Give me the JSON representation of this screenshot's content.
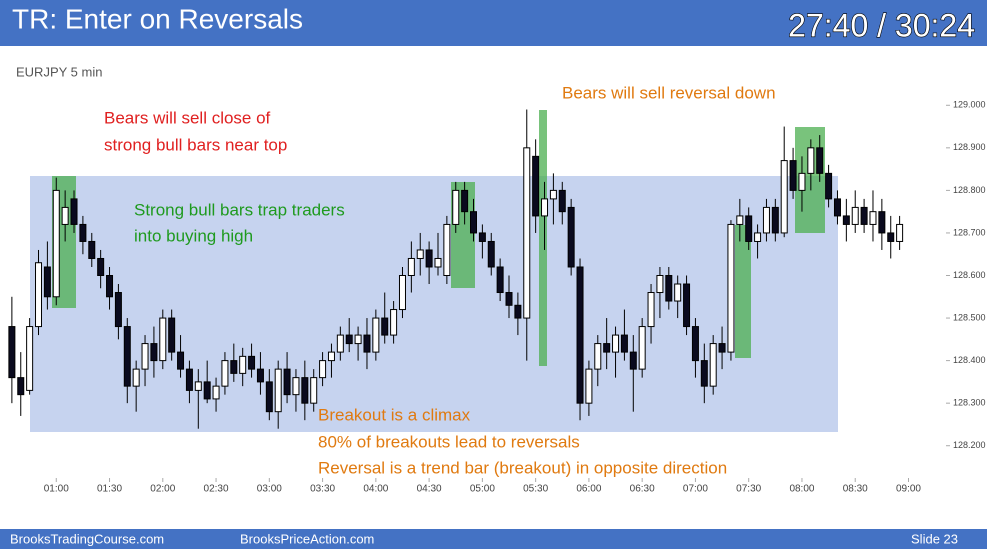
{
  "chart_data": {
    "type": "candlestick",
    "title": "TR: Enter on Reversals",
    "timer": "27:40 / 30:24",
    "symbol": "EURJPY 5 min",
    "annotations": [
      "Bears will sell close of",
      "strong bull bars near top",
      "Strong bull bars trap traders",
      "into buying high",
      "Bears will sell reversal down",
      "Breakout is a climax",
      "80% of breakouts lead to reversals",
      "Reversal is a trend bar (breakout) in opposite direction"
    ],
    "footer": [
      "BrooksTradingCourse.com",
      "BrooksPriceAction.com",
      "Slide  23"
    ],
    "xlim": [
      30,
      560
    ],
    "xticks": [
      {
        "value": 60,
        "label": "01:00"
      },
      {
        "value": 90,
        "label": "01:30"
      },
      {
        "value": 120,
        "label": "02:00"
      },
      {
        "value": 150,
        "label": "02:30"
      },
      {
        "value": 180,
        "label": "03:00"
      },
      {
        "value": 210,
        "label": "03:30"
      },
      {
        "value": 240,
        "label": "04:00"
      },
      {
        "value": 270,
        "label": "04:30"
      },
      {
        "value": 300,
        "label": "05:00"
      },
      {
        "value": 330,
        "label": "05:30"
      },
      {
        "value": 360,
        "label": "06:00"
      },
      {
        "value": 390,
        "label": "06:30"
      },
      {
        "value": 420,
        "label": "07:00"
      },
      {
        "value": 450,
        "label": "07:30"
      },
      {
        "value": 480,
        "label": "08:00"
      },
      {
        "value": 510,
        "label": "08:30"
      },
      {
        "value": 540,
        "label": "09:00"
      }
    ],
    "ylim": [
      128.15,
      129.05
    ],
    "yticks": [
      {
        "value": 128.2,
        "label": "128.200"
      },
      {
        "value": 128.3,
        "label": "128.300"
      },
      {
        "value": 128.4,
        "label": "128.400"
      },
      {
        "value": 128.5,
        "label": "128.500"
      },
      {
        "value": 128.6,
        "label": "128.600"
      },
      {
        "value": 128.7,
        "label": "128.700"
      },
      {
        "value": 128.8,
        "label": "128.800"
      },
      {
        "value": 128.9,
        "label": "128.900"
      },
      {
        "value": 129,
        "label": "129.000"
      }
    ],
    "x": [
      35,
      40,
      45,
      50,
      55,
      60,
      65,
      70,
      75,
      80,
      85,
      90,
      95,
      100,
      105,
      110,
      115,
      120,
      125,
      130,
      135,
      140,
      145,
      150,
      155,
      160,
      165,
      170,
      175,
      180,
      185,
      190,
      195,
      200,
      205,
      210,
      215,
      220,
      225,
      230,
      235,
      240,
      245,
      250,
      255,
      260,
      265,
      270,
      275,
      280,
      285,
      290,
      295,
      300,
      305,
      310,
      315,
      320,
      325,
      330,
      335,
      340,
      345,
      350,
      355,
      360,
      365,
      370,
      375,
      380,
      385,
      390,
      395,
      400,
      405,
      410,
      415,
      420,
      425,
      430,
      435,
      440,
      445,
      450,
      455,
      460,
      465,
      470,
      475,
      480,
      485,
      490,
      495,
      500,
      505,
      510,
      515,
      520,
      525,
      530,
      535
    ],
    "ohlc": [
      [
        128.48,
        128.55,
        128.3,
        128.36
      ],
      [
        128.36,
        128.42,
        128.27,
        128.32
      ],
      [
        128.33,
        128.5,
        128.32,
        128.48
      ],
      [
        128.48,
        128.66,
        128.46,
        128.63
      ],
      [
        128.62,
        128.68,
        128.52,
        128.55
      ],
      [
        128.55,
        128.83,
        128.53,
        128.8
      ],
      [
        128.72,
        128.8,
        128.68,
        128.76
      ],
      [
        128.78,
        128.8,
        128.7,
        128.72
      ],
      [
        128.72,
        128.74,
        128.65,
        128.68
      ],
      [
        128.68,
        128.7,
        128.62,
        128.64
      ],
      [
        128.64,
        128.66,
        128.57,
        128.6
      ],
      [
        128.6,
        128.62,
        128.52,
        128.55
      ],
      [
        128.56,
        128.58,
        128.45,
        128.48
      ],
      [
        128.48,
        128.5,
        128.3,
        128.34
      ],
      [
        128.34,
        128.4,
        128.28,
        128.38
      ],
      [
        128.38,
        128.46,
        128.34,
        128.44
      ],
      [
        128.44,
        128.48,
        128.36,
        128.4
      ],
      [
        128.4,
        128.52,
        128.38,
        128.5
      ],
      [
        128.5,
        128.52,
        128.4,
        128.42
      ],
      [
        128.42,
        128.46,
        128.36,
        128.38
      ],
      [
        128.38,
        128.4,
        128.3,
        128.33
      ],
      [
        128.33,
        128.38,
        128.24,
        128.35
      ],
      [
        128.35,
        128.4,
        128.3,
        128.31
      ],
      [
        128.31,
        128.36,
        128.28,
        128.34
      ],
      [
        128.34,
        128.42,
        128.32,
        128.4
      ],
      [
        128.4,
        128.44,
        128.35,
        128.37
      ],
      [
        128.37,
        128.43,
        128.34,
        128.41
      ],
      [
        128.41,
        128.44,
        128.36,
        128.38
      ],
      [
        128.38,
        128.42,
        128.32,
        128.35
      ],
      [
        128.35,
        128.38,
        128.26,
        128.28
      ],
      [
        128.28,
        128.4,
        128.24,
        128.38
      ],
      [
        128.38,
        128.42,
        128.3,
        128.32
      ],
      [
        128.32,
        128.38,
        128.28,
        128.36
      ],
      [
        128.36,
        128.4,
        128.26,
        128.3
      ],
      [
        128.3,
        128.38,
        128.28,
        128.36
      ],
      [
        128.36,
        128.42,
        128.34,
        128.4
      ],
      [
        128.4,
        128.44,
        128.36,
        128.42
      ],
      [
        128.42,
        128.48,
        128.4,
        128.46
      ],
      [
        128.46,
        128.5,
        128.42,
        128.44
      ],
      [
        128.44,
        128.48,
        128.4,
        128.46
      ],
      [
        128.46,
        128.5,
        128.38,
        128.42
      ],
      [
        128.42,
        128.52,
        128.4,
        128.5
      ],
      [
        128.5,
        128.56,
        128.44,
        128.46
      ],
      [
        128.46,
        128.54,
        128.44,
        128.52
      ],
      [
        128.52,
        128.62,
        128.5,
        128.6
      ],
      [
        128.6,
        128.68,
        128.56,
        128.64
      ],
      [
        128.64,
        128.7,
        128.6,
        128.66
      ],
      [
        128.66,
        128.68,
        128.58,
        128.62
      ],
      [
        128.62,
        128.7,
        128.6,
        128.64
      ],
      [
        128.6,
        128.74,
        128.58,
        128.72
      ],
      [
        128.72,
        128.82,
        128.7,
        128.8
      ],
      [
        128.8,
        128.82,
        128.72,
        128.75
      ],
      [
        128.75,
        128.78,
        128.68,
        128.7
      ],
      [
        128.7,
        128.72,
        128.64,
        128.68
      ],
      [
        128.68,
        128.7,
        128.6,
        128.62
      ],
      [
        128.62,
        128.64,
        128.54,
        128.56
      ],
      [
        128.56,
        128.6,
        128.5,
        128.53
      ],
      [
        128.53,
        128.56,
        128.46,
        128.5
      ],
      [
        128.5,
        128.99,
        128.4,
        128.9
      ],
      [
        128.88,
        128.92,
        128.7,
        128.74
      ],
      [
        128.74,
        128.82,
        128.66,
        128.78
      ],
      [
        128.78,
        128.84,
        128.72,
        128.8
      ],
      [
        128.8,
        128.82,
        128.72,
        128.75
      ],
      [
        128.76,
        128.78,
        128.6,
        128.62
      ],
      [
        128.62,
        128.64,
        128.26,
        128.3
      ],
      [
        128.3,
        128.4,
        128.27,
        128.38
      ],
      [
        128.38,
        128.46,
        128.34,
        128.44
      ],
      [
        128.44,
        128.5,
        128.38,
        128.42
      ],
      [
        128.42,
        128.48,
        128.36,
        128.46
      ],
      [
        128.46,
        128.52,
        128.4,
        128.42
      ],
      [
        128.42,
        128.46,
        128.28,
        128.38
      ],
      [
        128.38,
        128.5,
        128.36,
        128.48
      ],
      [
        128.48,
        128.58,
        128.44,
        128.56
      ],
      [
        128.56,
        128.62,
        128.5,
        128.6
      ],
      [
        128.6,
        128.62,
        128.52,
        128.54
      ],
      [
        128.54,
        128.6,
        128.5,
        128.58
      ],
      [
        128.58,
        128.6,
        128.46,
        128.48
      ],
      [
        128.48,
        128.5,
        128.36,
        128.4
      ],
      [
        128.4,
        128.44,
        128.3,
        128.34
      ],
      [
        128.34,
        128.46,
        128.32,
        128.44
      ],
      [
        128.44,
        128.48,
        128.38,
        128.42
      ],
      [
        128.42,
        128.73,
        128.4,
        128.72
      ],
      [
        128.72,
        128.78,
        128.68,
        128.74
      ],
      [
        128.74,
        128.76,
        128.66,
        128.68
      ],
      [
        128.68,
        128.72,
        128.64,
        128.7
      ],
      [
        128.7,
        128.78,
        128.68,
        128.76
      ],
      [
        128.76,
        128.78,
        128.68,
        128.7
      ],
      [
        128.7,
        128.95,
        128.69,
        128.87
      ],
      [
        128.87,
        128.9,
        128.78,
        128.8
      ],
      [
        128.8,
        128.88,
        128.75,
        128.84
      ],
      [
        128.84,
        128.92,
        128.8,
        128.9
      ],
      [
        128.9,
        128.93,
        128.82,
        128.84
      ],
      [
        128.84,
        128.86,
        128.76,
        128.78
      ],
      [
        128.78,
        128.8,
        128.72,
        128.74
      ],
      [
        128.74,
        128.78,
        128.68,
        128.72
      ],
      [
        128.72,
        128.8,
        128.7,
        128.76
      ],
      [
        128.76,
        128.78,
        128.7,
        128.72
      ],
      [
        128.72,
        128.8,
        128.68,
        128.75
      ],
      [
        128.75,
        128.78,
        128.66,
        128.7
      ],
      [
        128.7,
        128.74,
        128.64,
        128.68
      ],
      [
        128.68,
        128.74,
        128.66,
        128.72
      ]
    ]
  }
}
